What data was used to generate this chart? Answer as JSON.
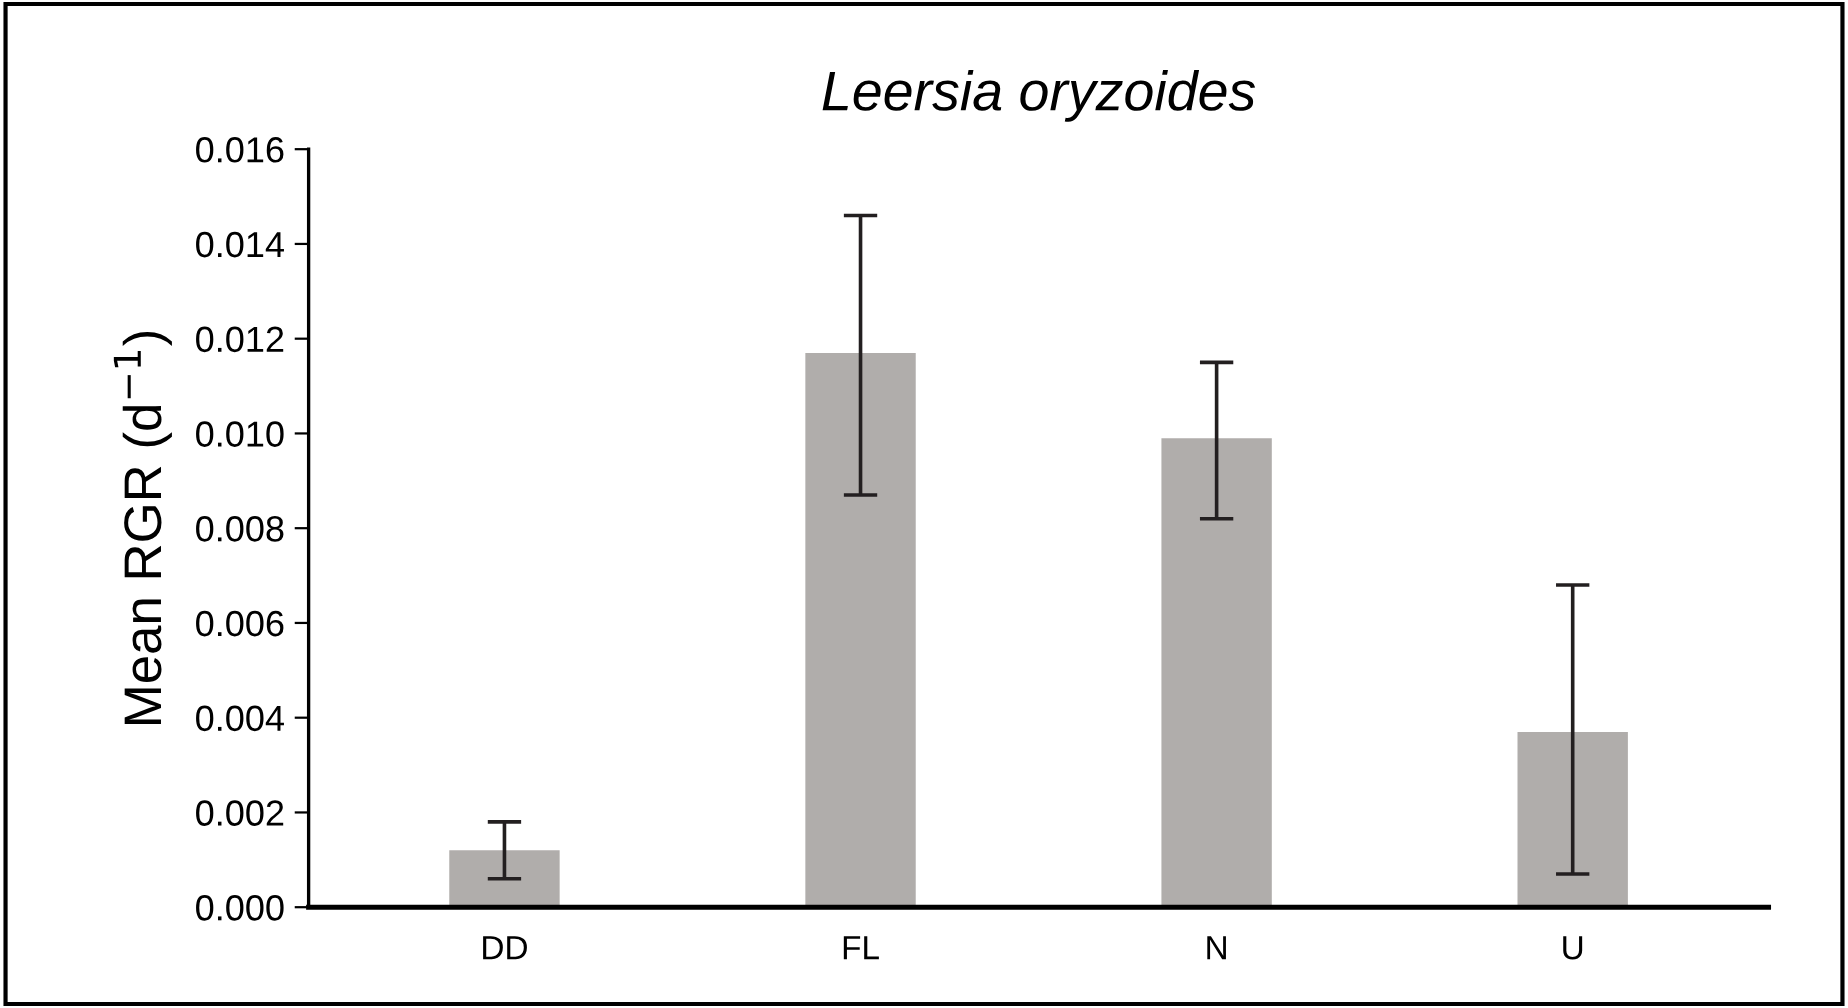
{
  "chart_data": {
    "type": "bar",
    "title": "Leersia oryzoides",
    "ylabel": "Mean RGR (d$^{−1}$)",
    "categories": [
      "DD",
      "FL",
      "N",
      "U"
    ],
    "values": [
      0.0012,
      0.0117,
      0.0099,
      0.0037
    ],
    "errors": [
      [
        0.0006,
        0.0018
      ],
      [
        0.0087,
        0.0146
      ],
      [
        0.0082,
        0.0115
      ],
      [
        0.0007,
        0.0068
      ]
    ],
    "color": "#b0adab",
    "ylim": [
      0,
      0.016
    ],
    "yticks": [
      {
        "value": 0,
        "label": "0.000"
      },
      {
        "value": 0.002,
        "label": "0.002"
      },
      {
        "value": 0.004,
        "label": "0.004"
      },
      {
        "value": 0.006,
        "label": "0.006"
      },
      {
        "value": 0.008,
        "label": "0.008"
      },
      {
        "value": 0.01,
        "label": "0.010"
      },
      {
        "value": 0.012,
        "label": "0.012"
      },
      {
        "value": 0.014,
        "label": "0.014"
      },
      {
        "value": 0.016,
        "label": "0.016"
      }
    ],
    "grid": false
  }
}
